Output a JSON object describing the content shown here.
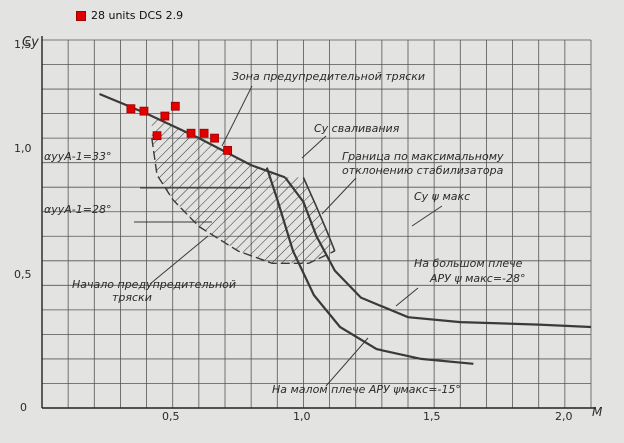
{
  "chart_data": {
    "type": "scatter",
    "title": "",
    "xlabel": "M",
    "ylabel": "Cy",
    "xlim": [
      0,
      2.1
    ],
    "ylim": [
      0,
      1.5
    ],
    "x_ticks": [
      "0,5",
      "1,0",
      "1,5",
      "2,0"
    ],
    "y_ticks": [
      "0,5",
      "1,0",
      "1,5"
    ],
    "origin_label": "0",
    "grid": true,
    "legend_position": "top-left",
    "series": [
      {
        "name": "28 units DCS 2.9",
        "color": "#e00000",
        "marker": "square",
        "points": [
          [
            0.34,
            1.22
          ],
          [
            0.39,
            1.21
          ],
          [
            0.44,
            1.11
          ],
          [
            0.47,
            1.19
          ],
          [
            0.51,
            1.23
          ],
          [
            0.57,
            1.12
          ],
          [
            0.62,
            1.12
          ],
          [
            0.66,
            1.1
          ],
          [
            0.71,
            1.05
          ]
        ]
      }
    ],
    "curves": [
      {
        "name": "cy_stall",
        "points": [
          [
            0.22,
            1.28
          ],
          [
            0.4,
            1.2
          ],
          [
            0.6,
            1.1
          ],
          [
            0.8,
            0.99
          ],
          [
            0.93,
            0.94
          ]
        ]
      },
      {
        "name": "cy_max",
        "points": [
          [
            0.93,
            0.94
          ],
          [
            1.0,
            0.84
          ],
          [
            1.05,
            0.7
          ],
          [
            1.12,
            0.56
          ],
          [
            1.22,
            0.45
          ],
          [
            1.4,
            0.37
          ],
          [
            1.6,
            0.35
          ],
          [
            1.9,
            0.34
          ],
          [
            2.1,
            0.33
          ]
        ]
      },
      {
        "name": "cy_max_small_arm",
        "points": [
          [
            0.86,
            0.98
          ],
          [
            0.9,
            0.85
          ],
          [
            0.96,
            0.64
          ],
          [
            1.04,
            0.46
          ],
          [
            1.14,
            0.33
          ],
          [
            1.28,
            0.24
          ],
          [
            1.45,
            0.2
          ],
          [
            1.65,
            0.18
          ]
        ]
      },
      {
        "name": "buffet_onset",
        "points": [
          [
            0.42,
            1.1
          ],
          [
            0.44,
            0.95
          ],
          [
            0.5,
            0.85
          ],
          [
            0.6,
            0.74
          ],
          [
            0.75,
            0.64
          ],
          [
            0.88,
            0.59
          ],
          [
            1.02,
            0.59
          ],
          [
            1.12,
            0.64
          ]
        ]
      },
      {
        "name": "stabilizer_boundary",
        "points": [
          [
            1.0,
            0.94
          ],
          [
            1.05,
            0.82
          ],
          [
            1.09,
            0.72
          ],
          [
            1.12,
            0.64
          ]
        ]
      }
    ],
    "annotations": [
      "Зона предупредительной тряски",
      "Cy сваливания",
      "Граница по максимальному",
      "отклонению стабилизатора",
      "Cy ψ макс",
      "αууА-1=33°",
      "αууА-1=28°",
      "Начало предупредительной",
      "тряски",
      "На большом плече",
      "АРУ ψ макс=-28°",
      "На малом плече АРУ ψмакс=-15°"
    ]
  }
}
